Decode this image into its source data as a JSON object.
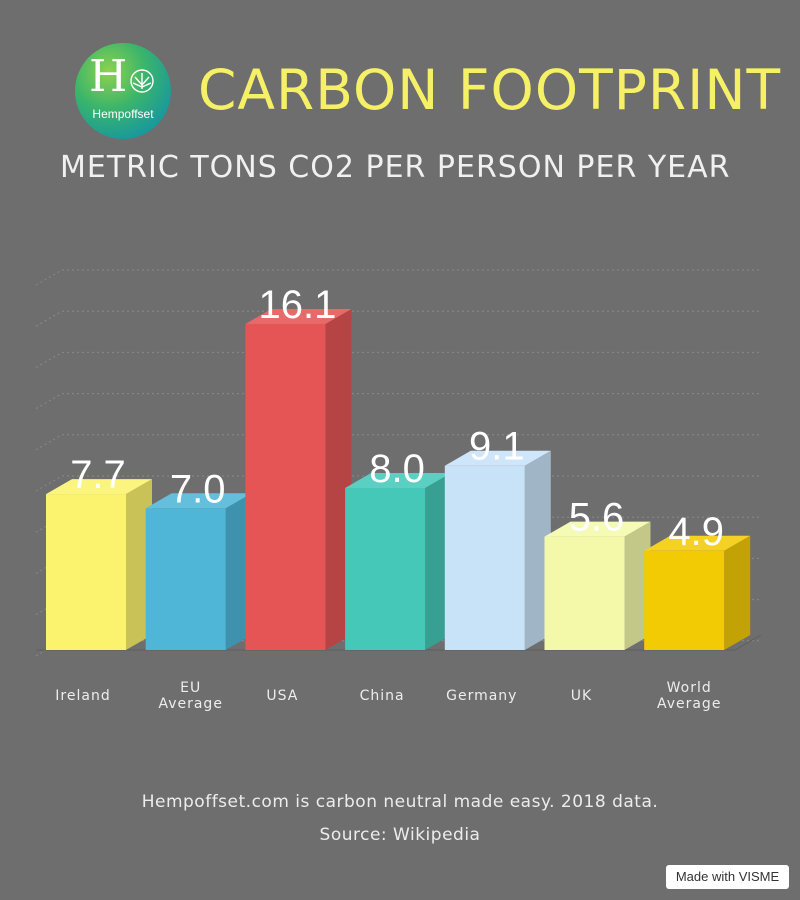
{
  "header": {
    "title": "CARBON FOOTPRINT",
    "subtitle": "METRIC TONS CO2 PER PERSON PER YEAR",
    "logo_text": "Hempoffset",
    "logo_letter": "H"
  },
  "footer": {
    "line1": "Hempoffset.com is carbon neutral made easy. 2018 data.",
    "line2": "Source: Wikipedia",
    "badge": "Made with VISME"
  },
  "chart_data": {
    "type": "bar",
    "title": "CARBON FOOTPRINT",
    "subtitle": "METRIC TONS CO2 PER PERSON PER YEAR",
    "categories": [
      [
        "Ireland"
      ],
      [
        "EU",
        "Average"
      ],
      [
        "USA"
      ],
      [
        "China"
      ],
      [
        "Germany"
      ],
      [
        "UK"
      ],
      [
        "World",
        "Average"
      ]
    ],
    "values": [
      7.7,
      7.0,
      16.1,
      8.0,
      9.1,
      5.6,
      4.9
    ],
    "value_labels": [
      "7.7",
      "7.0",
      "16.1",
      "8.0",
      "9.1",
      "5.6",
      "4.9"
    ],
    "colors": [
      "#fbf36d",
      "#4fb6d8",
      "#e55555",
      "#45c8b8",
      "#c8e2f8",
      "#f4f9aa",
      "#f2cb05"
    ],
    "ylim": [
      0,
      18
    ],
    "grid": true,
    "style": "3d",
    "xlabel": "",
    "ylabel": ""
  }
}
